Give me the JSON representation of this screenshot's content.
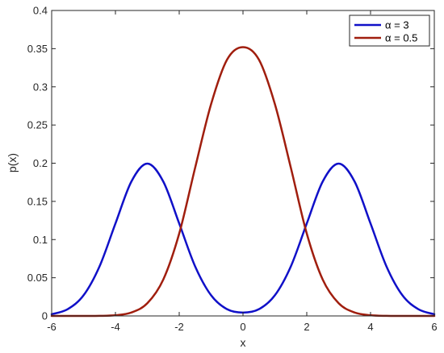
{
  "chart_data": {
    "type": "line",
    "title": "",
    "xlabel": "x",
    "ylabel": "p(x)",
    "xlim": [
      -6,
      6
    ],
    "ylim": [
      0,
      0.4
    ],
    "xticks": [
      -6,
      -4,
      -2,
      0,
      2,
      4,
      6
    ],
    "xtick_labels": [
      "-6",
      "-4",
      "-2",
      "0",
      "2",
      "4",
      "6"
    ],
    "yticks": [
      0,
      0.05,
      0.1,
      0.15,
      0.2,
      0.25,
      0.3,
      0.35,
      0.4
    ],
    "ytick_labels": [
      "0",
      "0.05",
      "0.1",
      "0.15",
      "0.2",
      "0.25",
      "0.3",
      "0.35",
      "0.4"
    ],
    "grid": false,
    "legend_position": "top-right",
    "x": [
      -6,
      -5.5,
      -5,
      -4.5,
      -4,
      -3.5,
      -3,
      -2.5,
      -2,
      -1.5,
      -1,
      -0.5,
      0,
      0.5,
      1,
      1.5,
      2,
      2.5,
      3,
      3.5,
      4,
      4.5,
      5,
      5.5,
      6
    ],
    "series": [
      {
        "name": "α = 3",
        "color": "#1010c8",
        "values": [
          0.0022,
          0.0088,
          0.027,
          0.0648,
          0.121,
          0.176,
          0.1995,
          0.176,
          0.121,
          0.0648,
          0.027,
          0.0088,
          0.0044,
          0.0088,
          0.027,
          0.0648,
          0.121,
          0.176,
          0.1995,
          0.176,
          0.121,
          0.0648,
          0.027,
          0.0088,
          0.0022
        ]
      },
      {
        "name": "α = 0.5",
        "color": "#a01e0e",
        "values": [
          0.0,
          0.0,
          0.0,
          0.0001,
          0.0009,
          0.0045,
          0.0166,
          0.0476,
          0.1079,
          0.1942,
          0.2774,
          0.3356,
          0.352,
          0.3356,
          0.2774,
          0.1942,
          0.1079,
          0.0476,
          0.0166,
          0.0045,
          0.0009,
          0.0001,
          0.0,
          0.0,
          0.0
        ]
      }
    ]
  }
}
